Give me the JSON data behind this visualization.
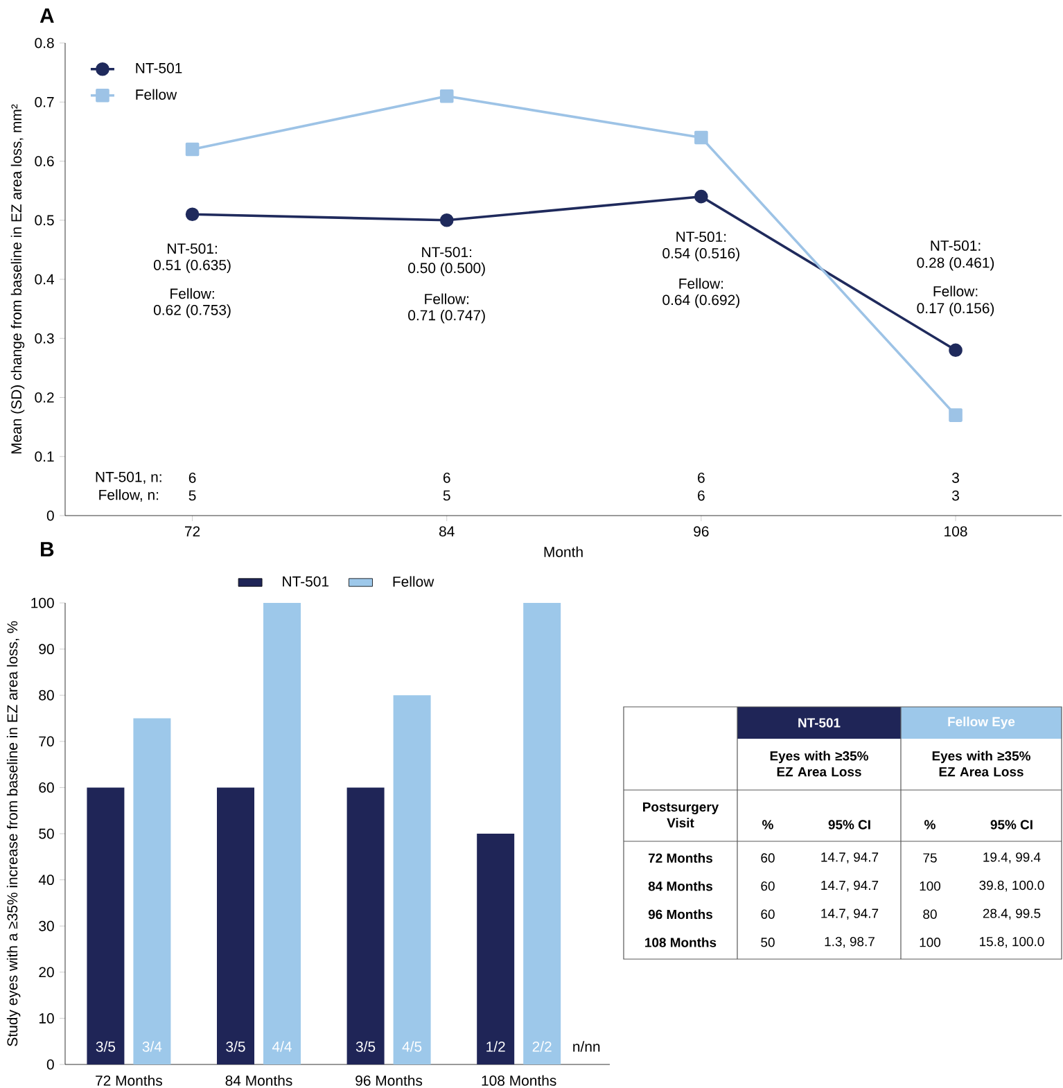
{
  "chart_data": [
    {
      "type": "line",
      "title": "A",
      "xlabel": "Month",
      "ylabel": "Mean (SD) change from baseline in EZ area loss, mm²",
      "x": [
        72,
        84,
        96,
        108
      ],
      "xlim": [
        66,
        113
      ],
      "xticks": [
        72,
        84,
        96,
        108
      ],
      "ylim": [
        0,
        0.8
      ],
      "yticks": [
        0,
        0.1,
        0.2,
        0.3,
        0.4,
        0.5,
        0.6,
        0.7,
        0.8
      ],
      "legend": "top left",
      "series": [
        {
          "name": "NT-501",
          "color": "#1f2a5c",
          "marker": "circle",
          "values": [
            0.51,
            0.5,
            0.54,
            0.28
          ]
        },
        {
          "name": "Fellow",
          "color": "#9dc3e6",
          "marker": "square",
          "values": [
            0.62,
            0.71,
            0.64,
            0.17
          ]
        }
      ],
      "annotations": [
        "NT-501:",
        "0.51 (0.635)",
        "Fellow:",
        "0.62 (0.753)",
        "NT-501:",
        "0.50 (0.500)",
        "Fellow:",
        "0.71 (0.747)",
        "NT-501:",
        "0.54 (0.516)",
        "Fellow:",
        "0.64 (0.692)",
        "NT-501:",
        "0.28 (0.461)",
        "Fellow:",
        "0.17 (0.156)",
        "NT-501, n:",
        "Fellow, n:",
        "6",
        "6",
        "6",
        "3",
        "5",
        "5",
        "6",
        "3"
      ]
    },
    {
      "type": "bar",
      "title": "B",
      "ylabel": "Study eyes with a ≥35% increase from baseline in EZ area loss, %",
      "categories": [
        "72 Months",
        "84 Months",
        "96 Months",
        "108 Months"
      ],
      "ylim": [
        0,
        100
      ],
      "yticks": [
        0,
        10,
        20,
        30,
        40,
        50,
        60,
        70,
        80,
        90,
        100
      ],
      "legend": "top",
      "series": [
        {
          "name": "NT-501",
          "color": "#1f2557",
          "values": [
            60,
            60,
            60,
            50
          ]
        },
        {
          "name": "Fellow",
          "color": "#9dc8ea",
          "values": [
            75,
            100,
            80,
            100
          ]
        }
      ],
      "annotations": [
        "3/5",
        "3/4",
        "3/5",
        "4/4",
        "3/5",
        "4/5",
        "1/2",
        "2/2",
        "n/nn"
      ]
    },
    {
      "type": "other",
      "annotations": [
        "NT-501",
        "Fellow Eye",
        "Eyes with ≥35% EZ Area Loss",
        "Eyes with ≥35% EZ Area Loss",
        "Postsurgery Visit",
        "%",
        "95% CI",
        "%",
        "95% CI",
        "72 Months",
        "60",
        "14.7, 94.7",
        "75",
        "19.4, 99.4",
        "84 Months",
        "60",
        "14.7, 94.7",
        "100",
        "39.8, 100.0",
        "96 Months",
        "60",
        "14.7, 94.7",
        "80",
        "28.4, 99.5",
        "108 Months",
        "50",
        "1.3, 98.7",
        "100",
        "15.8, 100.0"
      ]
    }
  ]
}
